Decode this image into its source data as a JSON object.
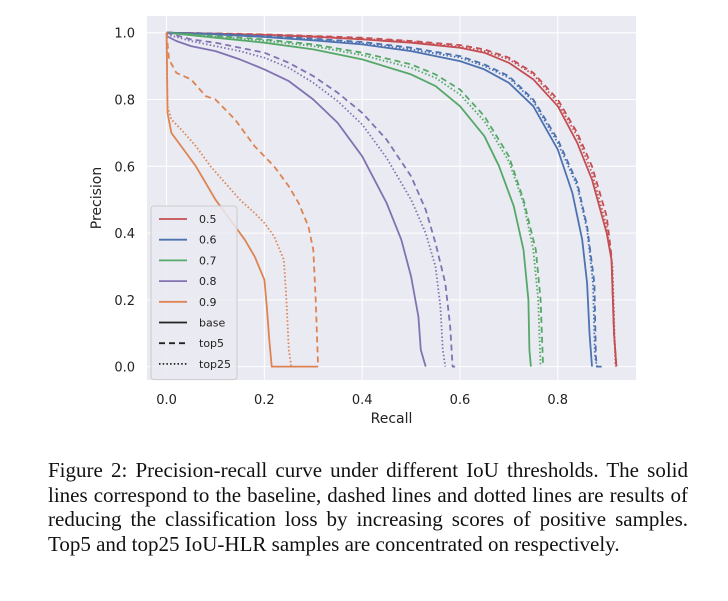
{
  "caption": "Figure 2: Precision-recall curve under different IoU thresholds. The solid lines correspond to the baseline, dashed lines and dotted lines are results of reducing the classification loss by increasing scores of positive samples. Top5 and top25 IoU-HLR samples are concentrated on respectively.",
  "chart_data": {
    "type": "line",
    "title": "",
    "xlabel": "Recall",
    "ylabel": "Precision",
    "xlim": [
      -0.04,
      0.96
    ],
    "ylim": [
      -0.04,
      1.05
    ],
    "x_ticks": [
      "0.0",
      "0.2",
      "0.4",
      "0.6",
      "0.8"
    ],
    "y_ticks": [
      "0.0",
      "0.2",
      "0.4",
      "0.6",
      "0.8",
      "1.0"
    ],
    "grid": true,
    "legend_position": "lower-left",
    "background": "#eaeaf2",
    "legend": {
      "thresholds": [
        {
          "label": "0.5",
          "color": "#c44e52"
        },
        {
          "label": "0.6",
          "color": "#4c72b0"
        },
        {
          "label": "0.7",
          "color": "#55a868"
        },
        {
          "label": "0.8",
          "color": "#8172b2"
        },
        {
          "label": "0.9",
          "color": "#dd8452"
        }
      ],
      "styles": [
        {
          "label": "base",
          "dash": "solid"
        },
        {
          "label": "top5",
          "dash": "dashed"
        },
        {
          "label": "top25",
          "dash": "dotted"
        }
      ]
    },
    "series": [
      {
        "threshold": "0.5",
        "style": "solid",
        "points": [
          [
            0,
            1.0
          ],
          [
            0.1,
            0.997
          ],
          [
            0.2,
            0.993
          ],
          [
            0.3,
            0.988
          ],
          [
            0.4,
            0.98
          ],
          [
            0.5,
            0.97
          ],
          [
            0.6,
            0.955
          ],
          [
            0.65,
            0.94
          ],
          [
            0.7,
            0.91
          ],
          [
            0.75,
            0.86
          ],
          [
            0.8,
            0.78
          ],
          [
            0.84,
            0.67
          ],
          [
            0.87,
            0.56
          ],
          [
            0.9,
            0.4
          ],
          [
            0.91,
            0.32
          ],
          [
            0.915,
            0.1
          ],
          [
            0.92,
            0.0
          ]
        ]
      },
      {
        "threshold": "0.5",
        "style": "dashed",
        "points": [
          [
            0,
            1.0
          ],
          [
            0.1,
            0.998
          ],
          [
            0.2,
            0.995
          ],
          [
            0.3,
            0.99
          ],
          [
            0.4,
            0.985
          ],
          [
            0.5,
            0.975
          ],
          [
            0.6,
            0.963
          ],
          [
            0.65,
            0.95
          ],
          [
            0.7,
            0.925
          ],
          [
            0.75,
            0.88
          ],
          [
            0.8,
            0.8
          ],
          [
            0.84,
            0.7
          ],
          [
            0.87,
            0.6
          ],
          [
            0.9,
            0.45
          ],
          [
            0.91,
            0.33
          ],
          [
            0.915,
            0.1
          ],
          [
            0.92,
            0.0
          ]
        ]
      },
      {
        "threshold": "0.5",
        "style": "dotted",
        "points": [
          [
            0,
            1.0
          ],
          [
            0.1,
            0.997
          ],
          [
            0.2,
            0.994
          ],
          [
            0.3,
            0.989
          ],
          [
            0.4,
            0.982
          ],
          [
            0.5,
            0.973
          ],
          [
            0.6,
            0.958
          ],
          [
            0.65,
            0.945
          ],
          [
            0.7,
            0.92
          ],
          [
            0.75,
            0.875
          ],
          [
            0.8,
            0.79
          ],
          [
            0.84,
            0.69
          ],
          [
            0.87,
            0.58
          ],
          [
            0.9,
            0.42
          ],
          [
            0.912,
            0.3
          ],
          [
            0.918,
            0.0
          ]
        ]
      },
      {
        "threshold": "0.6",
        "style": "solid",
        "points": [
          [
            0,
            1.0
          ],
          [
            0.1,
            0.995
          ],
          [
            0.2,
            0.987
          ],
          [
            0.3,
            0.977
          ],
          [
            0.4,
            0.965
          ],
          [
            0.5,
            0.945
          ],
          [
            0.6,
            0.915
          ],
          [
            0.65,
            0.89
          ],
          [
            0.7,
            0.85
          ],
          [
            0.75,
            0.78
          ],
          [
            0.8,
            0.65
          ],
          [
            0.83,
            0.52
          ],
          [
            0.85,
            0.38
          ],
          [
            0.86,
            0.25
          ],
          [
            0.865,
            0.1
          ],
          [
            0.87,
            0.0
          ]
        ]
      },
      {
        "threshold": "0.6",
        "style": "dashed",
        "points": [
          [
            0,
            1.0
          ],
          [
            0.1,
            0.997
          ],
          [
            0.2,
            0.99
          ],
          [
            0.3,
            0.982
          ],
          [
            0.4,
            0.972
          ],
          [
            0.5,
            0.955
          ],
          [
            0.6,
            0.93
          ],
          [
            0.65,
            0.905
          ],
          [
            0.7,
            0.87
          ],
          [
            0.75,
            0.8
          ],
          [
            0.8,
            0.68
          ],
          [
            0.84,
            0.55
          ],
          [
            0.86,
            0.42
          ],
          [
            0.875,
            0.25
          ],
          [
            0.878,
            0.03
          ],
          [
            0.88,
            0.0
          ],
          [
            0.89,
            0.0
          ]
        ]
      },
      {
        "threshold": "0.6",
        "style": "dotted",
        "points": [
          [
            0,
            1.0
          ],
          [
            0.1,
            0.996
          ],
          [
            0.2,
            0.988
          ],
          [
            0.3,
            0.98
          ],
          [
            0.4,
            0.968
          ],
          [
            0.5,
            0.95
          ],
          [
            0.6,
            0.925
          ],
          [
            0.65,
            0.9
          ],
          [
            0.7,
            0.865
          ],
          [
            0.75,
            0.795
          ],
          [
            0.8,
            0.67
          ],
          [
            0.84,
            0.54
          ],
          [
            0.86,
            0.41
          ],
          [
            0.872,
            0.25
          ],
          [
            0.876,
            0.03
          ],
          [
            0.88,
            0.0
          ]
        ]
      },
      {
        "threshold": "0.7",
        "style": "solid",
        "points": [
          [
            0,
            1.0
          ],
          [
            0.1,
            0.985
          ],
          [
            0.2,
            0.97
          ],
          [
            0.3,
            0.95
          ],
          [
            0.4,
            0.92
          ],
          [
            0.5,
            0.875
          ],
          [
            0.55,
            0.84
          ],
          [
            0.6,
            0.78
          ],
          [
            0.65,
            0.69
          ],
          [
            0.68,
            0.6
          ],
          [
            0.71,
            0.48
          ],
          [
            0.73,
            0.35
          ],
          [
            0.74,
            0.2
          ],
          [
            0.742,
            0.05
          ],
          [
            0.745,
            0.0
          ]
        ]
      },
      {
        "threshold": "0.7",
        "style": "dashed",
        "points": [
          [
            0,
            1.0
          ],
          [
            0.1,
            0.99
          ],
          [
            0.2,
            0.98
          ],
          [
            0.3,
            0.965
          ],
          [
            0.4,
            0.94
          ],
          [
            0.5,
            0.905
          ],
          [
            0.55,
            0.875
          ],
          [
            0.6,
            0.83
          ],
          [
            0.65,
            0.75
          ],
          [
            0.7,
            0.63
          ],
          [
            0.73,
            0.5
          ],
          [
            0.755,
            0.35
          ],
          [
            0.765,
            0.2
          ],
          [
            0.77,
            0.0
          ]
        ]
      },
      {
        "threshold": "0.7",
        "style": "dotted",
        "points": [
          [
            0,
            1.0
          ],
          [
            0.1,
            0.988
          ],
          [
            0.2,
            0.976
          ],
          [
            0.3,
            0.96
          ],
          [
            0.4,
            0.933
          ],
          [
            0.5,
            0.895
          ],
          [
            0.55,
            0.865
          ],
          [
            0.6,
            0.815
          ],
          [
            0.65,
            0.735
          ],
          [
            0.7,
            0.615
          ],
          [
            0.73,
            0.49
          ],
          [
            0.75,
            0.35
          ],
          [
            0.76,
            0.2
          ],
          [
            0.765,
            0.0
          ]
        ]
      },
      {
        "threshold": "0.8",
        "style": "solid",
        "points": [
          [
            0,
            0.99
          ],
          [
            0.02,
            0.975
          ],
          [
            0.05,
            0.96
          ],
          [
            0.1,
            0.945
          ],
          [
            0.15,
            0.92
          ],
          [
            0.2,
            0.89
          ],
          [
            0.25,
            0.855
          ],
          [
            0.3,
            0.8
          ],
          [
            0.35,
            0.73
          ],
          [
            0.4,
            0.63
          ],
          [
            0.45,
            0.49
          ],
          [
            0.48,
            0.38
          ],
          [
            0.5,
            0.27
          ],
          [
            0.515,
            0.15
          ],
          [
            0.52,
            0.05
          ],
          [
            0.53,
            0.0
          ]
        ]
      },
      {
        "threshold": "0.8",
        "style": "dashed",
        "points": [
          [
            0,
            1.0
          ],
          [
            0.05,
            0.98
          ],
          [
            0.1,
            0.97
          ],
          [
            0.15,
            0.955
          ],
          [
            0.2,
            0.94
          ],
          [
            0.25,
            0.91
          ],
          [
            0.3,
            0.87
          ],
          [
            0.35,
            0.82
          ],
          [
            0.4,
            0.76
          ],
          [
            0.45,
            0.68
          ],
          [
            0.5,
            0.57
          ],
          [
            0.53,
            0.47
          ],
          [
            0.55,
            0.37
          ],
          [
            0.57,
            0.25
          ],
          [
            0.58,
            0.12
          ],
          [
            0.585,
            0.0
          ],
          [
            0.59,
            0.0
          ]
        ]
      },
      {
        "threshold": "0.8",
        "style": "dotted",
        "points": [
          [
            0,
            0.995
          ],
          [
            0.05,
            0.975
          ],
          [
            0.1,
            0.96
          ],
          [
            0.15,
            0.945
          ],
          [
            0.2,
            0.925
          ],
          [
            0.25,
            0.895
          ],
          [
            0.3,
            0.85
          ],
          [
            0.35,
            0.795
          ],
          [
            0.4,
            0.725
          ],
          [
            0.45,
            0.625
          ],
          [
            0.5,
            0.5
          ],
          [
            0.53,
            0.4
          ],
          [
            0.55,
            0.3
          ],
          [
            0.56,
            0.18
          ],
          [
            0.565,
            0.05
          ],
          [
            0.57,
            0.0
          ]
        ]
      },
      {
        "threshold": "0.9",
        "style": "solid",
        "points": [
          [
            0,
            1.0
          ],
          [
            0.002,
            0.76
          ],
          [
            0.01,
            0.7
          ],
          [
            0.02,
            0.68
          ],
          [
            0.04,
            0.64
          ],
          [
            0.06,
            0.6
          ],
          [
            0.08,
            0.55
          ],
          [
            0.1,
            0.5
          ],
          [
            0.12,
            0.46
          ],
          [
            0.14,
            0.42
          ],
          [
            0.16,
            0.38
          ],
          [
            0.18,
            0.33
          ],
          [
            0.2,
            0.26
          ],
          [
            0.205,
            0.18
          ],
          [
            0.21,
            0.08
          ],
          [
            0.215,
            0.0
          ],
          [
            0.31,
            0.0
          ]
        ]
      },
      {
        "threshold": "0.9",
        "style": "dashed",
        "points": [
          [
            0,
            1.0
          ],
          [
            0.005,
            0.92
          ],
          [
            0.02,
            0.88
          ],
          [
            0.05,
            0.86
          ],
          [
            0.08,
            0.81
          ],
          [
            0.1,
            0.8
          ],
          [
            0.14,
            0.74
          ],
          [
            0.18,
            0.66
          ],
          [
            0.22,
            0.6
          ],
          [
            0.25,
            0.54
          ],
          [
            0.27,
            0.49
          ],
          [
            0.29,
            0.42
          ],
          [
            0.3,
            0.35
          ],
          [
            0.305,
            0.2
          ],
          [
            0.31,
            0.0
          ]
        ]
      },
      {
        "threshold": "0.9",
        "style": "dotted",
        "points": [
          [
            0,
            1.0
          ],
          [
            0.002,
            0.78
          ],
          [
            0.01,
            0.74
          ],
          [
            0.03,
            0.71
          ],
          [
            0.06,
            0.66
          ],
          [
            0.09,
            0.6
          ],
          [
            0.12,
            0.55
          ],
          [
            0.15,
            0.5
          ],
          [
            0.18,
            0.46
          ],
          [
            0.2,
            0.43
          ],
          [
            0.22,
            0.39
          ],
          [
            0.24,
            0.32
          ],
          [
            0.245,
            0.2
          ],
          [
            0.25,
            0.05
          ],
          [
            0.255,
            0.0
          ]
        ]
      }
    ]
  }
}
